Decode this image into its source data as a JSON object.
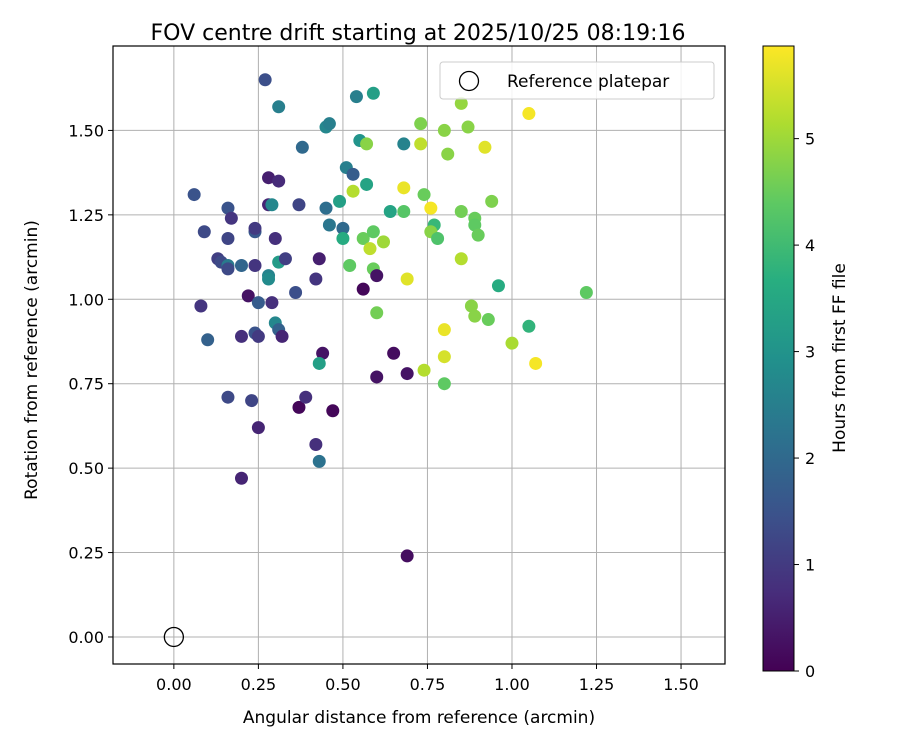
{
  "chart_data": {
    "type": "scatter",
    "title": "FOV centre drift starting at 2025/10/25 08:19:16",
    "xlabel": "Angular distance from reference (arcmin)",
    "ylabel": "Rotation from reference (arcmin)",
    "xlim": [
      -0.18,
      1.63
    ],
    "ylim": [
      -0.08,
      1.75
    ],
    "xticks": [
      "0.00",
      "0.25",
      "0.50",
      "0.75",
      "1.00",
      "1.25",
      "1.50"
    ],
    "yticks": [
      "0.00",
      "0.25",
      "0.50",
      "0.75",
      "1.00",
      "1.25",
      "1.50"
    ],
    "grid": true,
    "legend": {
      "position": "top-right",
      "entries": [
        {
          "label": "Reference platepar",
          "marker": "open-circle"
        }
      ]
    },
    "reference_point": {
      "x": 0.0,
      "y": 0.0
    },
    "colorbar": {
      "label": "Hours from first FF file",
      "range": [
        0,
        5.87
      ],
      "ticks": [
        "0",
        "1",
        "2",
        "3",
        "4",
        "5"
      ],
      "colormap": "viridis"
    },
    "points": [
      {
        "x": 0.27,
        "y": 1.65,
        "h": 1.4
      },
      {
        "x": 0.31,
        "y": 1.57,
        "h": 2.5
      },
      {
        "x": 0.54,
        "y": 1.6,
        "h": 2.5
      },
      {
        "x": 0.59,
        "y": 1.61,
        "h": 3.3
      },
      {
        "x": 0.45,
        "y": 1.51,
        "h": 2.7
      },
      {
        "x": 0.46,
        "y": 1.52,
        "h": 2.5
      },
      {
        "x": 0.38,
        "y": 1.45,
        "h": 2.0
      },
      {
        "x": 0.55,
        "y": 1.47,
        "h": 3.0
      },
      {
        "x": 0.57,
        "y": 1.46,
        "h": 4.8
      },
      {
        "x": 0.68,
        "y": 1.46,
        "h": 2.6
      },
      {
        "x": 0.73,
        "y": 1.52,
        "h": 4.7
      },
      {
        "x": 0.73,
        "y": 1.46,
        "h": 5.3
      },
      {
        "x": 0.8,
        "y": 1.5,
        "h": 4.8
      },
      {
        "x": 0.85,
        "y": 1.58,
        "h": 4.9
      },
      {
        "x": 0.87,
        "y": 1.51,
        "h": 4.8
      },
      {
        "x": 0.81,
        "y": 1.43,
        "h": 4.8
      },
      {
        "x": 0.92,
        "y": 1.45,
        "h": 5.6
      },
      {
        "x": 1.05,
        "y": 1.55,
        "h": 5.8
      },
      {
        "x": 0.06,
        "y": 1.31,
        "h": 1.5
      },
      {
        "x": 0.28,
        "y": 1.36,
        "h": 0.5
      },
      {
        "x": 0.31,
        "y": 1.35,
        "h": 0.7
      },
      {
        "x": 0.51,
        "y": 1.39,
        "h": 2.5
      },
      {
        "x": 0.53,
        "y": 1.37,
        "h": 1.7
      },
      {
        "x": 0.57,
        "y": 1.34,
        "h": 3.4
      },
      {
        "x": 0.53,
        "y": 1.32,
        "h": 5.2
      },
      {
        "x": 0.49,
        "y": 1.29,
        "h": 3.3
      },
      {
        "x": 0.16,
        "y": 1.27,
        "h": 1.5
      },
      {
        "x": 0.28,
        "y": 1.28,
        "h": 0.6
      },
      {
        "x": 0.29,
        "y": 1.28,
        "h": 2.7
      },
      {
        "x": 0.37,
        "y": 1.28,
        "h": 1.2
      },
      {
        "x": 0.45,
        "y": 1.27,
        "h": 2.1
      },
      {
        "x": 0.64,
        "y": 1.26,
        "h": 3.4
      },
      {
        "x": 0.68,
        "y": 1.26,
        "h": 4.3
      },
      {
        "x": 0.74,
        "y": 1.31,
        "h": 4.5
      },
      {
        "x": 0.68,
        "y": 1.33,
        "h": 5.7
      },
      {
        "x": 0.76,
        "y": 1.27,
        "h": 5.8
      },
      {
        "x": 0.85,
        "y": 1.26,
        "h": 4.6
      },
      {
        "x": 0.89,
        "y": 1.24,
        "h": 4.5
      },
      {
        "x": 0.94,
        "y": 1.29,
        "h": 4.7
      },
      {
        "x": 0.17,
        "y": 1.24,
        "h": 0.9
      },
      {
        "x": 0.46,
        "y": 1.22,
        "h": 2.3
      },
      {
        "x": 0.5,
        "y": 1.21,
        "h": 2.0
      },
      {
        "x": 0.5,
        "y": 1.18,
        "h": 3.6
      },
      {
        "x": 0.56,
        "y": 1.18,
        "h": 4.5
      },
      {
        "x": 0.59,
        "y": 1.2,
        "h": 4.4
      },
      {
        "x": 0.58,
        "y": 1.15,
        "h": 5.3
      },
      {
        "x": 0.62,
        "y": 1.17,
        "h": 5.0
      },
      {
        "x": 0.77,
        "y": 1.22,
        "h": 3.9
      },
      {
        "x": 0.76,
        "y": 1.2,
        "h": 4.8
      },
      {
        "x": 0.78,
        "y": 1.18,
        "h": 4.2
      },
      {
        "x": 0.89,
        "y": 1.22,
        "h": 4.4
      },
      {
        "x": 0.9,
        "y": 1.19,
        "h": 4.5
      },
      {
        "x": 0.09,
        "y": 1.2,
        "h": 1.3
      },
      {
        "x": 0.16,
        "y": 1.18,
        "h": 1.2
      },
      {
        "x": 0.24,
        "y": 1.2,
        "h": 1.6
      },
      {
        "x": 0.24,
        "y": 1.21,
        "h": 1.0
      },
      {
        "x": 0.3,
        "y": 1.18,
        "h": 0.8
      },
      {
        "x": 0.13,
        "y": 1.12,
        "h": 1.1
      },
      {
        "x": 0.14,
        "y": 1.11,
        "h": 1.3
      },
      {
        "x": 0.16,
        "y": 1.1,
        "h": 2.4
      },
      {
        "x": 0.16,
        "y": 1.09,
        "h": 1.3
      },
      {
        "x": 0.2,
        "y": 1.1,
        "h": 1.9
      },
      {
        "x": 0.24,
        "y": 1.1,
        "h": 0.9
      },
      {
        "x": 0.28,
        "y": 1.07,
        "h": 2.6
      },
      {
        "x": 0.28,
        "y": 1.06,
        "h": 2.8
      },
      {
        "x": 0.31,
        "y": 1.11,
        "h": 3.2
      },
      {
        "x": 0.33,
        "y": 1.12,
        "h": 1.1
      },
      {
        "x": 0.43,
        "y": 1.12,
        "h": 0.5
      },
      {
        "x": 0.52,
        "y": 1.1,
        "h": 4.4
      },
      {
        "x": 0.59,
        "y": 1.09,
        "h": 4.5
      },
      {
        "x": 0.85,
        "y": 1.12,
        "h": 5.2
      },
      {
        "x": 0.08,
        "y": 0.98,
        "h": 0.9
      },
      {
        "x": 0.22,
        "y": 1.01,
        "h": 0.3
      },
      {
        "x": 0.25,
        "y": 0.99,
        "h": 1.7
      },
      {
        "x": 0.29,
        "y": 0.99,
        "h": 0.8
      },
      {
        "x": 0.36,
        "y": 1.02,
        "h": 1.4
      },
      {
        "x": 0.42,
        "y": 1.06,
        "h": 0.9
      },
      {
        "x": 0.56,
        "y": 1.03,
        "h": 0.1
      },
      {
        "x": 0.6,
        "y": 1.07,
        "h": 0.3
      },
      {
        "x": 0.6,
        "y": 0.96,
        "h": 4.6
      },
      {
        "x": 0.69,
        "y": 1.06,
        "h": 5.6
      },
      {
        "x": 0.96,
        "y": 1.04,
        "h": 3.6
      },
      {
        "x": 0.88,
        "y": 0.98,
        "h": 4.8
      },
      {
        "x": 0.89,
        "y": 0.95,
        "h": 4.8
      },
      {
        "x": 0.93,
        "y": 0.94,
        "h": 4.5
      },
      {
        "x": 0.8,
        "y": 0.91,
        "h": 5.7
      },
      {
        "x": 1.05,
        "y": 0.92,
        "h": 3.8
      },
      {
        "x": 1.22,
        "y": 1.02,
        "h": 4.4
      },
      {
        "x": 0.1,
        "y": 0.88,
        "h": 1.8
      },
      {
        "x": 0.2,
        "y": 0.89,
        "h": 0.8
      },
      {
        "x": 0.24,
        "y": 0.9,
        "h": 1.5
      },
      {
        "x": 0.25,
        "y": 0.89,
        "h": 1.0
      },
      {
        "x": 0.3,
        "y": 0.93,
        "h": 2.7
      },
      {
        "x": 0.31,
        "y": 0.91,
        "h": 1.8
      },
      {
        "x": 0.32,
        "y": 0.89,
        "h": 0.6
      },
      {
        "x": 0.44,
        "y": 0.84,
        "h": 0.3
      },
      {
        "x": 0.65,
        "y": 0.84,
        "h": 0.2
      },
      {
        "x": 0.8,
        "y": 0.83,
        "h": 5.5
      },
      {
        "x": 1.0,
        "y": 0.87,
        "h": 5.1
      },
      {
        "x": 1.07,
        "y": 0.81,
        "h": 5.8
      },
      {
        "x": 0.43,
        "y": 0.81,
        "h": 3.3
      },
      {
        "x": 0.6,
        "y": 0.77,
        "h": 0.3
      },
      {
        "x": 0.69,
        "y": 0.78,
        "h": 0.3
      },
      {
        "x": 0.74,
        "y": 0.79,
        "h": 5.2
      },
      {
        "x": 0.8,
        "y": 0.75,
        "h": 4.4
      },
      {
        "x": 0.16,
        "y": 0.71,
        "h": 1.3
      },
      {
        "x": 0.23,
        "y": 0.7,
        "h": 1.2
      },
      {
        "x": 0.37,
        "y": 0.68,
        "h": 0.1
      },
      {
        "x": 0.39,
        "y": 0.71,
        "h": 0.8
      },
      {
        "x": 0.47,
        "y": 0.67,
        "h": 0.1
      },
      {
        "x": 0.25,
        "y": 0.62,
        "h": 0.6
      },
      {
        "x": 0.42,
        "y": 0.57,
        "h": 0.8
      },
      {
        "x": 0.43,
        "y": 0.52,
        "h": 2.2
      },
      {
        "x": 0.2,
        "y": 0.47,
        "h": 0.6
      },
      {
        "x": 0.69,
        "y": 0.24,
        "h": 0.2
      }
    ]
  }
}
